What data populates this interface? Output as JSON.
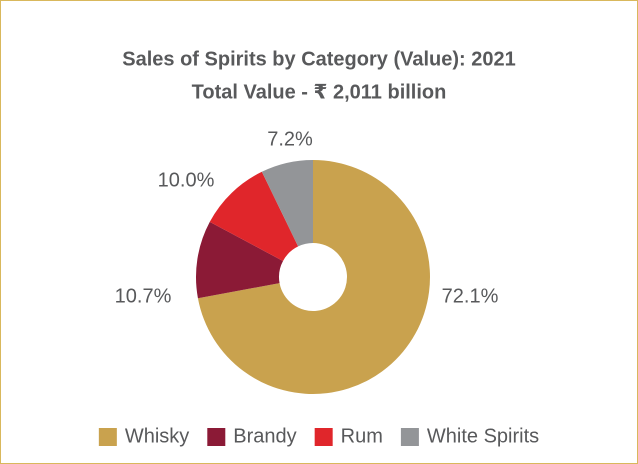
{
  "chart_data": {
    "type": "donut",
    "title": "Sales of Spirits by Category (Value): 2021",
    "subtitle": "Total Value - ₹ 2,011 billion",
    "categories": [
      "Whisky",
      "Brandy",
      "Rum",
      "White Spirits"
    ],
    "values": [
      72.1,
      10.7,
      10.0,
      7.2
    ],
    "value_labels": [
      "72.1%",
      "10.7%",
      "10.0%",
      "7.2%"
    ],
    "colors": [
      "#c9a24e",
      "#8b1a36",
      "#e0262b",
      "#939598"
    ],
    "legend": "bottom"
  }
}
